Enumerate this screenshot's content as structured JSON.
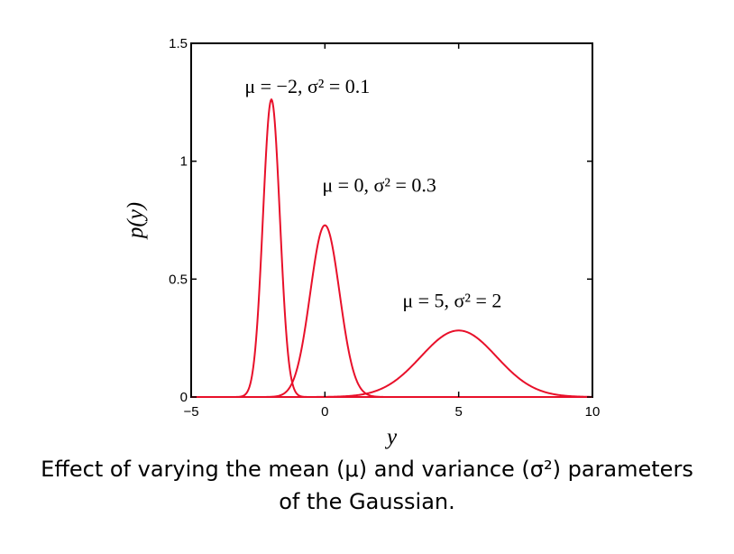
{
  "chart_data": {
    "type": "line",
    "xlabel": "y",
    "ylabel": "p(y)",
    "xlim": [
      -5,
      10
    ],
    "ylim": [
      0,
      1.5
    ],
    "x_ticks": [
      -5,
      0,
      5,
      10
    ],
    "x_tick_labels": [
      "−5",
      "0",
      "5",
      "10"
    ],
    "y_ticks": [
      0,
      0.5,
      1,
      1.5
    ],
    "y_tick_labels": [
      "0",
      "0.5",
      "1",
      "1.5"
    ],
    "grid": false,
    "legend": "none",
    "line_color": "#e8102a",
    "series": [
      {
        "mean": -2,
        "variance": 0.1,
        "peak": 1.26
      },
      {
        "mean": 0,
        "variance": 0.3,
        "peak": 0.73
      },
      {
        "mean": 5,
        "variance": 2,
        "peak": 0.28
      }
    ],
    "annotations": [
      {
        "text": "μ = −2, σ² = 0.1",
        "x": -3.0,
        "y": 1.29
      },
      {
        "text": "μ = 0, σ² = 0.3",
        "x": -0.1,
        "y": 0.87
      },
      {
        "text": "μ = 5, σ² = 2",
        "x": 2.9,
        "y": 0.38
      }
    ]
  },
  "caption": {
    "line1": "Effect of varying the mean (μ) and variance (σ²) parameters",
    "line2": "of the Gaussian."
  }
}
